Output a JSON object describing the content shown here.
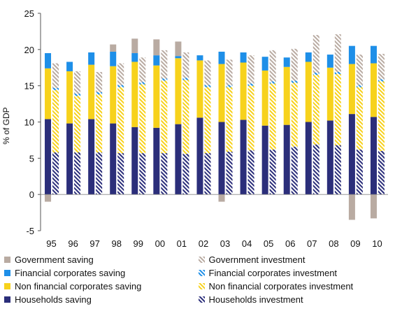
{
  "chart_data": {
    "type": "bar",
    "title": "",
    "xlabel": "",
    "ylabel": "% of GDP",
    "ylim": [
      -5,
      25
    ],
    "yticks": [
      -5,
      0,
      5,
      10,
      15,
      20,
      25
    ],
    "grid": false,
    "legend_position": "bottom",
    "categories": [
      "95",
      "96",
      "97",
      "98",
      "99",
      "00",
      "01",
      "02",
      "03",
      "04",
      "05",
      "06",
      "07",
      "08",
      "09",
      "10"
    ],
    "series": [
      {
        "name": "Households saving",
        "group": "saving",
        "color": "#2b2e7a",
        "pattern": "solid",
        "values": [
          10.4,
          9.8,
          10.4,
          9.8,
          9.3,
          9.2,
          9.7,
          10.6,
          10.0,
          10.3,
          9.5,
          9.6,
          10.0,
          10.2,
          11.1,
          10.7
        ]
      },
      {
        "name": "Non financial corporates saving",
        "group": "saving",
        "color": "#f7d21c",
        "pattern": "solid",
        "values": [
          7.0,
          7.2,
          7.5,
          7.9,
          9.0,
          8.6,
          9.1,
          7.9,
          8.0,
          7.9,
          7.6,
          8.0,
          8.3,
          7.3,
          6.9,
          7.4
        ]
      },
      {
        "name": "Financial corporates saving",
        "group": "saving",
        "color": "#1e8fe8",
        "pattern": "solid",
        "values": [
          2.1,
          1.3,
          1.7,
          2.0,
          1.2,
          1.4,
          0.3,
          0.7,
          1.7,
          1.4,
          1.9,
          1.3,
          1.3,
          1.8,
          2.5,
          2.4
        ]
      },
      {
        "name": "Government saving",
        "group": "saving",
        "color": "#b9aba2",
        "pattern": "solid",
        "values": [
          -1.0,
          0.0,
          0.0,
          1.0,
          2.0,
          2.2,
          2.0,
          0.0,
          -1.0,
          0.0,
          0.0,
          0.0,
          0.0,
          0.0,
          -3.5,
          -3.3
        ]
      },
      {
        "name": "Households investment",
        "group": "investment",
        "color": "#2b2e7a",
        "pattern": "hatch",
        "values": [
          5.8,
          5.8,
          5.8,
          5.7,
          5.7,
          5.7,
          5.6,
          5.7,
          5.9,
          6.1,
          6.2,
          6.6,
          6.9,
          6.8,
          6.2,
          6.0
        ]
      },
      {
        "name": "Non financial corporates investment",
        "group": "investment",
        "color": "#f7d21c",
        "pattern": "hatch",
        "values": [
          8.6,
          7.8,
          8.0,
          9.1,
          9.5,
          10.0,
          10.2,
          9.1,
          8.9,
          8.9,
          9.1,
          8.8,
          9.6,
          9.8,
          8.6,
          9.6
        ]
      },
      {
        "name": "Financial corporates investment",
        "group": "investment",
        "color": "#1e8fe8",
        "pattern": "hatch",
        "values": [
          0.3,
          0.3,
          0.3,
          0.3,
          0.3,
          0.3,
          0.3,
          0.3,
          0.3,
          0.3,
          0.3,
          0.3,
          0.3,
          0.3,
          0.3,
          0.3
        ]
      },
      {
        "name": "Government investment",
        "group": "investment",
        "color": "#b9aba2",
        "pattern": "hatch",
        "values": [
          3.4,
          3.1,
          2.8,
          3.0,
          3.4,
          3.9,
          3.5,
          3.4,
          3.5,
          3.9,
          4.3,
          4.4,
          5.2,
          5.2,
          4.2,
          3.5
        ]
      }
    ]
  },
  "legend": {
    "rows": [
      [
        {
          "label": "Government saving",
          "color": "#b9aba2",
          "pattern": "solid"
        },
        {
          "label": "Government investment",
          "color": "#b9aba2",
          "pattern": "hatch"
        }
      ],
      [
        {
          "label": "Financial corporates saving",
          "color": "#1e8fe8",
          "pattern": "solid"
        },
        {
          "label": "Financial corporates investment",
          "color": "#1e8fe8",
          "pattern": "hatch"
        }
      ],
      [
        {
          "label": "Non financial corporates saving",
          "color": "#f7d21c",
          "pattern": "solid"
        },
        {
          "label": "Non financial corporates investment",
          "color": "#f7d21c",
          "pattern": "hatch"
        }
      ],
      [
        {
          "label": "Households saving",
          "color": "#2b2e7a",
          "pattern": "solid"
        },
        {
          "label": "Households investment",
          "color": "#2b2e7a",
          "pattern": "hatch"
        }
      ]
    ]
  }
}
